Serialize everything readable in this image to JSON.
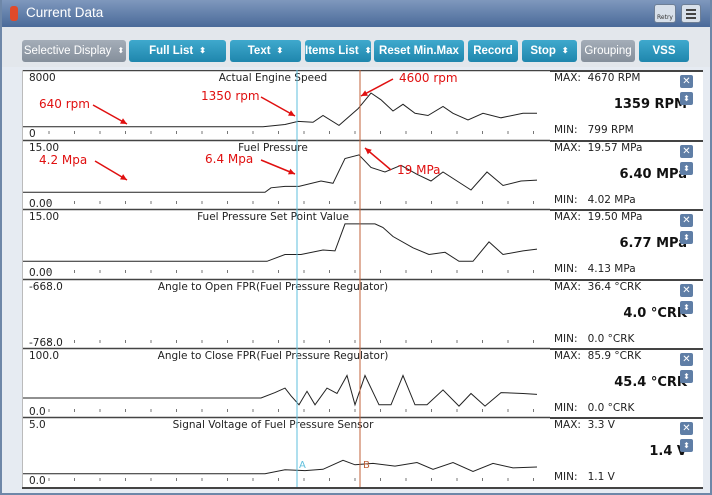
{
  "window": {
    "title": "Current Data",
    "retry_label": "Retry"
  },
  "toolbar": {
    "buttons": [
      {
        "label": "Selective Display",
        "arrow": "⬍",
        "style": "gray"
      },
      {
        "label": "Full List",
        "arrow": "⬍",
        "style": "teal"
      },
      {
        "label": "Text",
        "arrow": "⬍",
        "style": "teal"
      },
      {
        "label": "Items List",
        "arrow": "⬍",
        "style": "teal"
      },
      {
        "label": "Reset Min.Max",
        "arrow": "",
        "style": "teal"
      },
      {
        "label": "Record",
        "arrow": "",
        "style": "teal"
      },
      {
        "label": "Stop",
        "arrow": "⬍",
        "style": "teal"
      },
      {
        "label": "Grouping",
        "arrow": "",
        "style": "gray"
      },
      {
        "label": "VSS",
        "arrow": "",
        "style": "teal"
      }
    ]
  },
  "cursors": {
    "a_label": "A",
    "b_label": "B",
    "a_color": "#5fbfdc",
    "b_color": "#c0623a"
  },
  "channels": [
    {
      "name": "Actual Engine Speed",
      "ymax": "8000",
      "ymin": "0",
      "max_label": "MAX:",
      "max": "4670 RPM",
      "min_label": "MIN:",
      "min": "799 RPM",
      "current": "1359 RPM",
      "annotations": [
        "640 rpm",
        "1350 rpm",
        "4600 rpm"
      ]
    },
    {
      "name": "Fuel Pressure",
      "ymax": "15.00",
      "ymin": "0.00",
      "max_label": "MAX:",
      "max": "19.57 MPa",
      "min_label": "MIN:",
      "min": "4.02 MPa",
      "current": "6.40 MPa",
      "annotations": [
        "4.2 Mpa",
        "6.4 Mpa",
        "19 MPa"
      ]
    },
    {
      "name": "Fuel Pressure Set Point Value",
      "ymax": "15.00",
      "ymin": "0.00",
      "max_label": "MAX:",
      "max": "19.50 MPa",
      "min_label": "MIN:",
      "min": "4.13 MPa",
      "current": "6.77 MPa",
      "annotations": []
    },
    {
      "name": "Angle to Open FPR(Fuel Pressure Regulator)",
      "ymax": "-668.0",
      "ymin": "-768.0",
      "max_label": "MAX:",
      "max": "36.4 °CRK",
      "min_label": "MIN:",
      "min": "0.0 °CRK",
      "current": "4.0 °CRK",
      "annotations": []
    },
    {
      "name": "Angle to Close FPR(Fuel Pressure Regulator)",
      "ymax": "100.0",
      "ymin": "0.0",
      "max_label": "MAX:",
      "max": "85.9 °CRK",
      "min_label": "MIN:",
      "min": "0.0 °CRK",
      "current": "45.4 °CRK",
      "annotations": []
    },
    {
      "name": "Signal Voltage of Fuel Pressure Sensor",
      "ymax": "5.0",
      "ymin": "0.0",
      "max_label": "MAX:",
      "max": "3.3 V",
      "min_label": "MIN:",
      "min": "1.1 V",
      "current": "1.4 V",
      "annotations": []
    }
  ],
  "colors": {
    "annotation": "#e01010",
    "trace": "#222222"
  }
}
